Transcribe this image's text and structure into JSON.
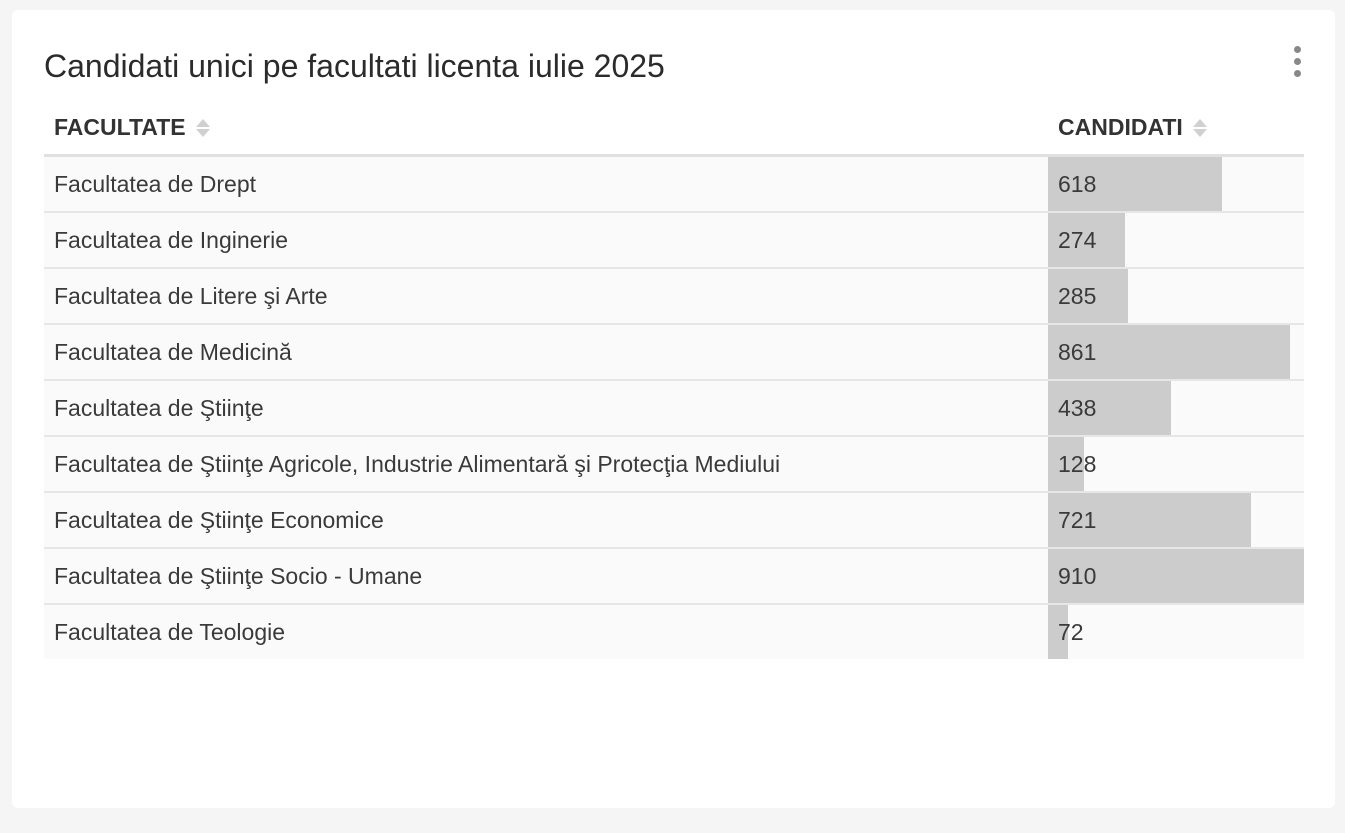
{
  "widget": {
    "title": "Candidati unici pe facultati licenta iulie 2025"
  },
  "table": {
    "columns": [
      "FACULTATE",
      "CANDIDATI"
    ],
    "max_value": 910,
    "rows": [
      {
        "facultate": "Facultatea de Drept",
        "candidati": 618
      },
      {
        "facultate": "Facultatea de Inginerie",
        "candidati": 274
      },
      {
        "facultate": "Facultatea de Litere şi Arte",
        "candidati": 285
      },
      {
        "facultate": "Facultatea de Medicină",
        "candidati": 861
      },
      {
        "facultate": "Facultatea de Ştiinţe",
        "candidati": 438
      },
      {
        "facultate": "Facultatea de Ştiinţe Agricole, Industrie Alimentară şi Protecţia Mediului",
        "candidati": 128
      },
      {
        "facultate": "Facultatea de Ştiinţe Economice",
        "candidati": 721
      },
      {
        "facultate": "Facultatea de Ştiinţe Socio - Umane",
        "candidati": 910
      },
      {
        "facultate": "Facultatea de Teologie",
        "candidati": 72
      }
    ]
  },
  "icons": {
    "menu": "kebab-menu-icon",
    "sort": "sort-icon"
  },
  "colors": {
    "bar": "#cccccc",
    "card_background": "#ffffff",
    "page_background": "#f5f5f5"
  }
}
